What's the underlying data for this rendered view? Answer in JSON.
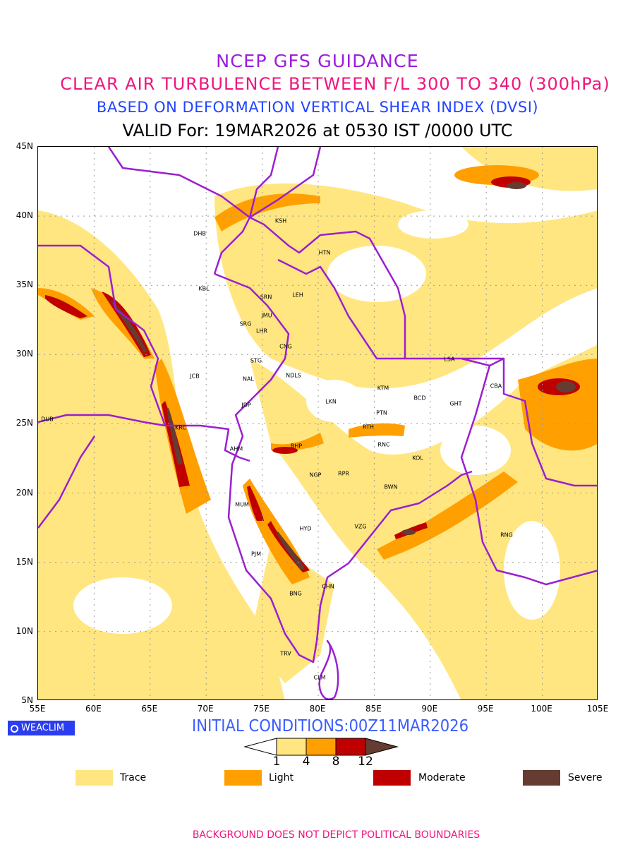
{
  "header": {
    "line1": "NCEP GFS GUIDANCE",
    "line2": "CLEAR AIR TURBULENCE BETWEEN F/L 300 TO 340 (300hPa)",
    "line3": "BASED ON DEFORMATION VERTICAL SHEAR INDEX (DVSI)",
    "line4": "VALID For: 19MAR2026 at 0530 IST /0000 UTC"
  },
  "map": {
    "lat_labels": [
      "45N",
      "40N",
      "35N",
      "30N",
      "25N",
      "20N",
      "15N",
      "10N",
      "5N"
    ],
    "lon_labels": [
      "55E",
      "60E",
      "65E",
      "70E",
      "75E",
      "80E",
      "85E",
      "90E",
      "95E",
      "100E",
      "105E"
    ],
    "stations": [
      "KSH",
      "DHB",
      "HTN",
      "KBL",
      "SRN",
      "LEH",
      "JMU",
      "SRG",
      "LHR",
      "CNG",
      "STG",
      "NDLS",
      "JCB",
      "NAL",
      "LSA",
      "CBA",
      "KTM",
      "BCD",
      "GHT",
      "LKN",
      "JDP",
      "PTN",
      "DUB",
      "RTH",
      "KRC",
      "BHP",
      "AHM",
      "RNC",
      "KOL",
      "NGP",
      "RPR",
      "BWN",
      "MUM",
      "HYD",
      "VZG",
      "RNG",
      "PJM",
      "CHN",
      "BNG",
      "TRV",
      "CLM"
    ],
    "boundary_color": "#9b1fd0"
  },
  "footer": {
    "logo": "WEACLIM",
    "initial_conditions": "INITIAL CONDITIONS:00Z11MAR2026",
    "colorbar_ticks": [
      "1",
      "4",
      "8",
      "12"
    ],
    "legend": [
      {
        "label": "Trace",
        "color": "#ffe680"
      },
      {
        "label": "Light",
        "color": "#ffa000"
      },
      {
        "label": "Moderate",
        "color": "#c00000"
      },
      {
        "label": "Severe",
        "color": "#643c32"
      }
    ],
    "disclaimer": "BACKGROUND DOES NOT DEPICT POLITICAL BOUNDARIES"
  }
}
